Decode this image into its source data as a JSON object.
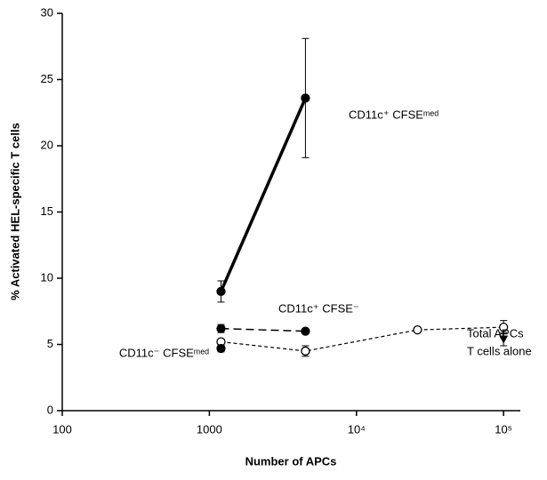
{
  "chart_data": {
    "type": "line",
    "x_label": "Number of APCs",
    "y_label": "% Activated HEL-specific T cells",
    "xscale": "log",
    "xlim": [
      100,
      130000
    ],
    "xticks": [
      100,
      1000,
      {
        "value": 10000,
        "label": "10⁴"
      },
      {
        "value": 100000,
        "label": "10⁵"
      }
    ],
    "ylim": [
      0,
      30
    ],
    "yticks": [
      0,
      5,
      10,
      15,
      20,
      25,
      30
    ],
    "series": [
      {
        "name": "CD11c⁺ CFSEᵐᵉᵈ",
        "color": "#000",
        "marker": "filled-circle",
        "dash": "solid",
        "width": 3.5,
        "x": [
          1200,
          4500
        ],
        "values": [
          9.0,
          23.6
        ],
        "errors": [
          0.8,
          4.5
        ]
      },
      {
        "name": "CD11c⁺ CFSE⁻",
        "color": "#000",
        "marker": "filled-circle",
        "dash": "long",
        "width": 1.5,
        "x": [
          1200,
          4500
        ],
        "values": [
          6.2,
          6.0
        ],
        "errors": [
          0.3,
          0.15
        ]
      },
      {
        "name": "Total APCs",
        "color": "#000",
        "marker": "open-circle",
        "dash": "short",
        "width": 1.2,
        "x": [
          1200,
          4500,
          26000,
          100000
        ],
        "values": [
          5.2,
          4.5,
          6.1,
          6.3
        ],
        "errors": [
          0.2,
          0.4,
          0.1,
          0.5
        ]
      },
      {
        "name": "CD11c⁻ CFSEᵐᵉᵈ",
        "color": "#000",
        "marker": "filled-circle",
        "dash": "solid",
        "width": 1,
        "x": [
          1200
        ],
        "values": [
          4.7
        ],
        "errors": [
          0.25
        ]
      },
      {
        "name": "T cells alone",
        "color": "#000",
        "marker": "triangle",
        "dash": "solid",
        "width": 1,
        "x": [
          100000
        ],
        "values": [
          5.4
        ],
        "errors": [
          0.5
        ]
      }
    ]
  }
}
